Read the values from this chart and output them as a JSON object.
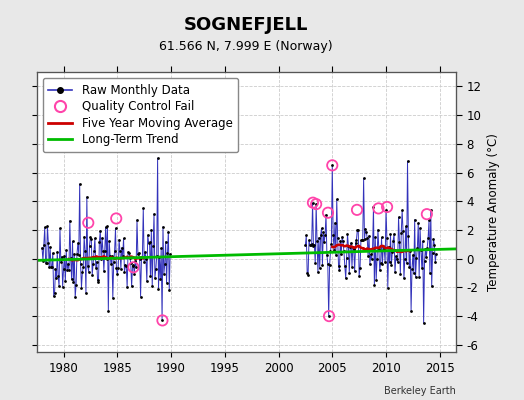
{
  "title": "SOGNEFJELL",
  "subtitle": "61.566 N, 7.999 E (Norway)",
  "ylabel": "Temperature Anomaly (°C)",
  "attribution": "Berkeley Earth",
  "xlim": [
    1977.5,
    2016.5
  ],
  "ylim": [
    -6.5,
    13.0
  ],
  "yticks": [
    -6,
    -4,
    -2,
    0,
    2,
    4,
    6,
    8,
    10,
    12
  ],
  "xticks": [
    1980,
    1985,
    1990,
    1995,
    2000,
    2005,
    2010,
    2015
  ],
  "fig_bg_color": "#e8e8e8",
  "plot_bg_color": "#ffffff",
  "grid_color": "#cccccc",
  "raw_line_color": "#3333bb",
  "raw_dot_color": "#000000",
  "qc_fail_color": "#ff44aa",
  "moving_avg_color": "#cc0000",
  "trend_color": "#00bb00",
  "title_fontsize": 13,
  "subtitle_fontsize": 9,
  "legend_fontsize": 8.5,
  "axis_fontsize": 8.5,
  "seed": 42,
  "period1_start": 1978.0,
  "period1_end": 1990.0,
  "period2_start": 2002.5,
  "period2_end": 2014.7
}
